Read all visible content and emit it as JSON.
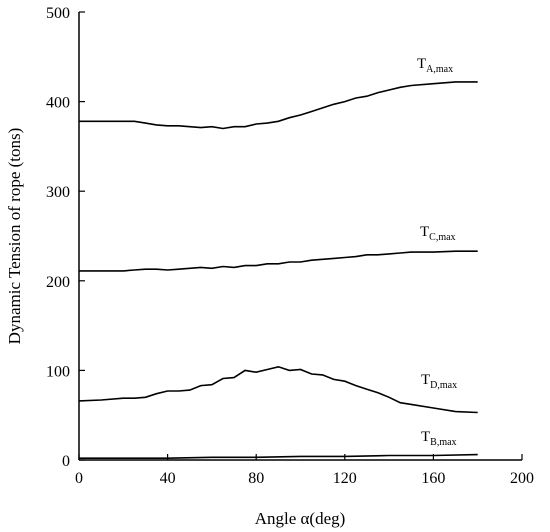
{
  "chart_data": {
    "type": "line",
    "title": "",
    "xlabel": "Angle  α(deg)",
    "ylabel": "Dynamic Tension of rope (tons)",
    "xlim": [
      0,
      200
    ],
    "ylim": [
      0,
      500
    ],
    "xticks": [
      0,
      40,
      80,
      120,
      160,
      200
    ],
    "yticks": [
      0,
      100,
      200,
      300,
      400,
      500
    ],
    "grid": false,
    "series": [
      {
        "name": "T_A,max",
        "label_main": "T",
        "label_sub": "A,max",
        "x": [
          0,
          10,
          20,
          25,
          30,
          35,
          40,
          45,
          50,
          55,
          60,
          65,
          70,
          75,
          80,
          85,
          90,
          95,
          100,
          105,
          110,
          115,
          120,
          125,
          130,
          135,
          140,
          145,
          150,
          160,
          170,
          180
        ],
        "y": [
          378,
          378,
          378,
          378,
          376,
          374,
          373,
          373,
          372,
          371,
          372,
          370,
          372,
          372,
          375,
          376,
          378,
          382,
          385,
          389,
          393,
          397,
          400,
          404,
          406,
          410,
          413,
          416,
          418,
          420,
          422,
          422
        ]
      },
      {
        "name": "T_C,max",
        "label_main": "T",
        "label_sub": "C,max",
        "x": [
          0,
          10,
          20,
          25,
          30,
          35,
          40,
          45,
          50,
          55,
          60,
          65,
          70,
          75,
          80,
          85,
          90,
          95,
          100,
          105,
          110,
          115,
          120,
          125,
          130,
          135,
          140,
          145,
          150,
          160,
          170,
          180
        ],
        "y": [
          211,
          211,
          211,
          212,
          213,
          213,
          212,
          213,
          214,
          215,
          214,
          216,
          215,
          217,
          217,
          219,
          219,
          221,
          221,
          223,
          224,
          225,
          226,
          227,
          229,
          229,
          230,
          231,
          232,
          232,
          233,
          233
        ]
      },
      {
        "name": "T_D,max",
        "label_main": "T",
        "label_sub": "D,max",
        "x": [
          0,
          10,
          20,
          25,
          30,
          35,
          40,
          45,
          50,
          55,
          60,
          65,
          70,
          75,
          80,
          85,
          90,
          95,
          100,
          105,
          110,
          115,
          120,
          125,
          130,
          135,
          140,
          145,
          150,
          160,
          170,
          180
        ],
        "y": [
          66,
          67,
          69,
          69,
          70,
          74,
          77,
          77,
          78,
          83,
          84,
          91,
          92,
          100,
          98,
          101,
          104,
          100,
          101,
          96,
          95,
          90,
          88,
          83,
          79,
          75,
          70,
          64,
          62,
          58,
          54,
          53
        ]
      },
      {
        "name": "T_B,max",
        "label_main": "T",
        "label_sub": "B,max",
        "x": [
          0,
          20,
          40,
          60,
          80,
          100,
          120,
          140,
          160,
          180
        ],
        "y": [
          2,
          2,
          2,
          3,
          3,
          4,
          4,
          5,
          5,
          6
        ]
      }
    ]
  }
}
